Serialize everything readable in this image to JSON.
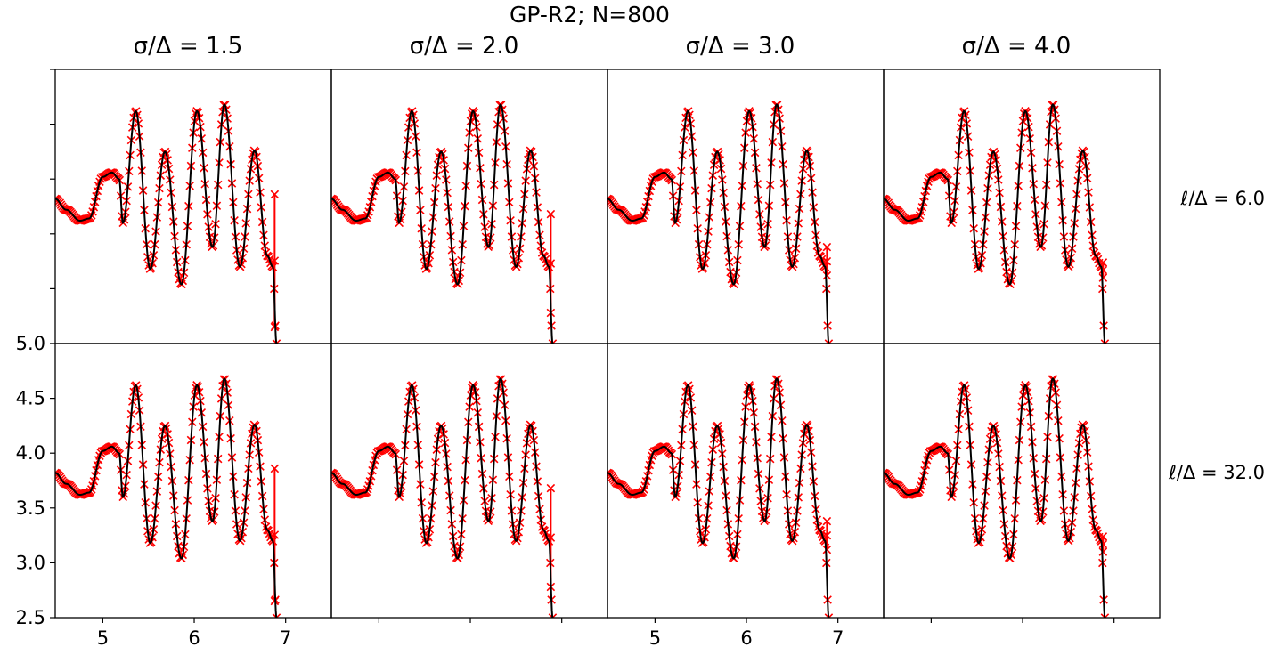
{
  "figure": {
    "suptitle": "GP-R2; N=800",
    "col_titles": [
      "σ/Δ = 1.5",
      "σ/Δ = 2.0",
      "σ/Δ = 3.0",
      "σ/Δ = 4.0"
    ],
    "row_labels": [
      "ℓ/Δ = 6.0",
      "ℓ/Δ = 32.0"
    ],
    "colors": {
      "observations": "#ff0000",
      "model": "#000000",
      "axes": "#000000"
    }
  },
  "chart_data": {
    "type": "line",
    "layout": "grid 2 rows x 4 columns of subplots",
    "xlim": [
      4.48,
      7.5
    ],
    "ylim": [
      2.5,
      5.0
    ],
    "xticks": [
      5,
      6,
      7
    ],
    "yticks": [
      2.5,
      3.0,
      3.5,
      4.0,
      4.5,
      5.0
    ],
    "xtick_labels": [
      "5",
      "6",
      "7"
    ],
    "ytick_labels": [
      "2.5",
      "3.0",
      "3.5",
      "4.0",
      "4.5",
      "5.0"
    ],
    "x_tick_labels_visible_on_columns": [
      1,
      3
    ],
    "y_tick_labels_visible_on": "row 2, column 1",
    "x_end": 6.9,
    "series": [
      {
        "style": "red x markers with error bars"
      },
      {
        "style": "black line"
      }
    ],
    "curve_keypoints": {
      "x": [
        4.48,
        4.6,
        4.75,
        4.85,
        5.0,
        5.1,
        5.18,
        5.22,
        5.36,
        5.52,
        5.68,
        5.86,
        6.03,
        6.2,
        6.33,
        6.5,
        6.66,
        6.8,
        6.86,
        6.9
      ],
      "y": [
        3.82,
        3.72,
        3.62,
        3.64,
        4.02,
        4.06,
        4.0,
        3.6,
        4.62,
        3.18,
        4.25,
        3.04,
        4.62,
        3.38,
        4.68,
        3.2,
        4.26,
        3.3,
        3.2,
        2.5
      ]
    },
    "terminal_error_bar": {
      "x": 6.88,
      "y_ranges": [
        [
          [
            2.65,
            3.86
          ],
          [
            2.78,
            3.68
          ],
          [
            3.12,
            3.38
          ],
          [
            3.1,
            3.24
          ]
        ],
        [
          [
            2.65,
            3.86
          ],
          [
            2.78,
            3.68
          ],
          [
            3.12,
            3.38
          ],
          [
            3.1,
            3.24
          ]
        ]
      ]
    }
  }
}
